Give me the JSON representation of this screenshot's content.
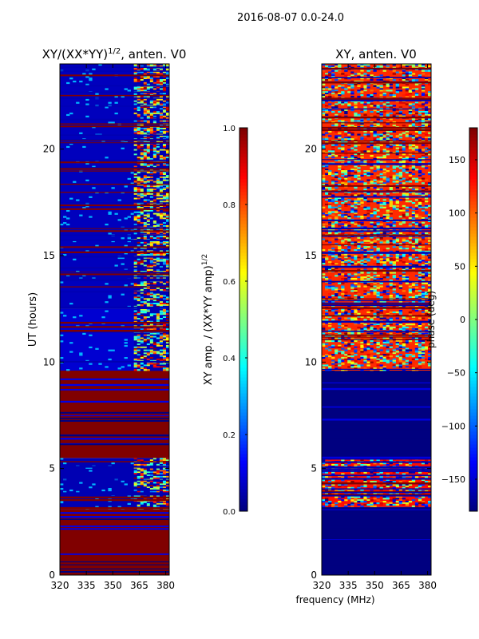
{
  "suptitle": "2016-08-07 0.0-24.0",
  "chart_data": [
    {
      "type": "heatmap",
      "title": "XY/(XX*YY)",
      "title_exponent": "1/2",
      "title_suffix": ", anten. V0",
      "xlabel": "",
      "ylabel": "UT (hours)",
      "xlim": [
        320,
        382
      ],
      "ylim": [
        0,
        24
      ],
      "xticks": [
        "320",
        "335",
        "350",
        "365",
        "380"
      ],
      "xtick_values": [
        320,
        335,
        350,
        365,
        380
      ],
      "yticks": [
        "0",
        "5",
        "10",
        "15",
        "20"
      ],
      "ytick_values": [
        0,
        5,
        10,
        15,
        20
      ],
      "colorbar": {
        "label": "XY amp. / (XX*YY amp)",
        "label_exponent": "1/2",
        "range": [
          0.0,
          1.0
        ],
        "ticks": [
          "0.0",
          "0.2",
          "0.4",
          "0.6",
          "0.8",
          "1.0"
        ],
        "tick_values": [
          0.0,
          0.2,
          0.4,
          0.6,
          0.8,
          1.0
        ],
        "colormap": "jet"
      },
      "bands": [
        {
          "t0": 0.0,
          "t1": 3.1,
          "value": 1.0
        },
        {
          "t0": 3.1,
          "t1": 5.5,
          "value": 0.05
        },
        {
          "t0": 5.5,
          "t1": 9.6,
          "value": 1.0
        },
        {
          "t0": 9.6,
          "t1": 12.5,
          "value": 0.08
        },
        {
          "t0": 12.5,
          "t1": 24.0,
          "value": 0.06
        }
      ],
      "bright_region_x": [
        362,
        382
      ]
    },
    {
      "type": "heatmap",
      "title": "XY, anten. V0",
      "xlabel": "frequency (MHz)",
      "ylabel": "",
      "xlim": [
        320,
        382
      ],
      "ylim": [
        0,
        24
      ],
      "xticks": [
        "320",
        "335",
        "350",
        "365",
        "380"
      ],
      "xtick_values": [
        320,
        335,
        350,
        365,
        380
      ],
      "yticks": [
        "0",
        "5",
        "10",
        "15",
        "20"
      ],
      "ytick_values": [
        0,
        5,
        10,
        15,
        20
      ],
      "colorbar": {
        "label": "phase (deg)",
        "range": [
          -180,
          180
        ],
        "ticks": [
          "−150",
          "−100",
          "−50",
          "0",
          "50",
          "100",
          "150"
        ],
        "tick_values": [
          -150,
          -100,
          -50,
          0,
          50,
          100,
          150
        ],
        "colormap": "jet"
      },
      "bands": [
        {
          "t0": 0.0,
          "t1": 3.2,
          "value": -180
        },
        {
          "t0": 3.2,
          "t1": 5.5,
          "value": 130
        },
        {
          "t0": 5.5,
          "t1": 9.6,
          "value": -180
        },
        {
          "t0": 9.6,
          "t1": 24.0,
          "value": 120
        }
      ]
    }
  ]
}
